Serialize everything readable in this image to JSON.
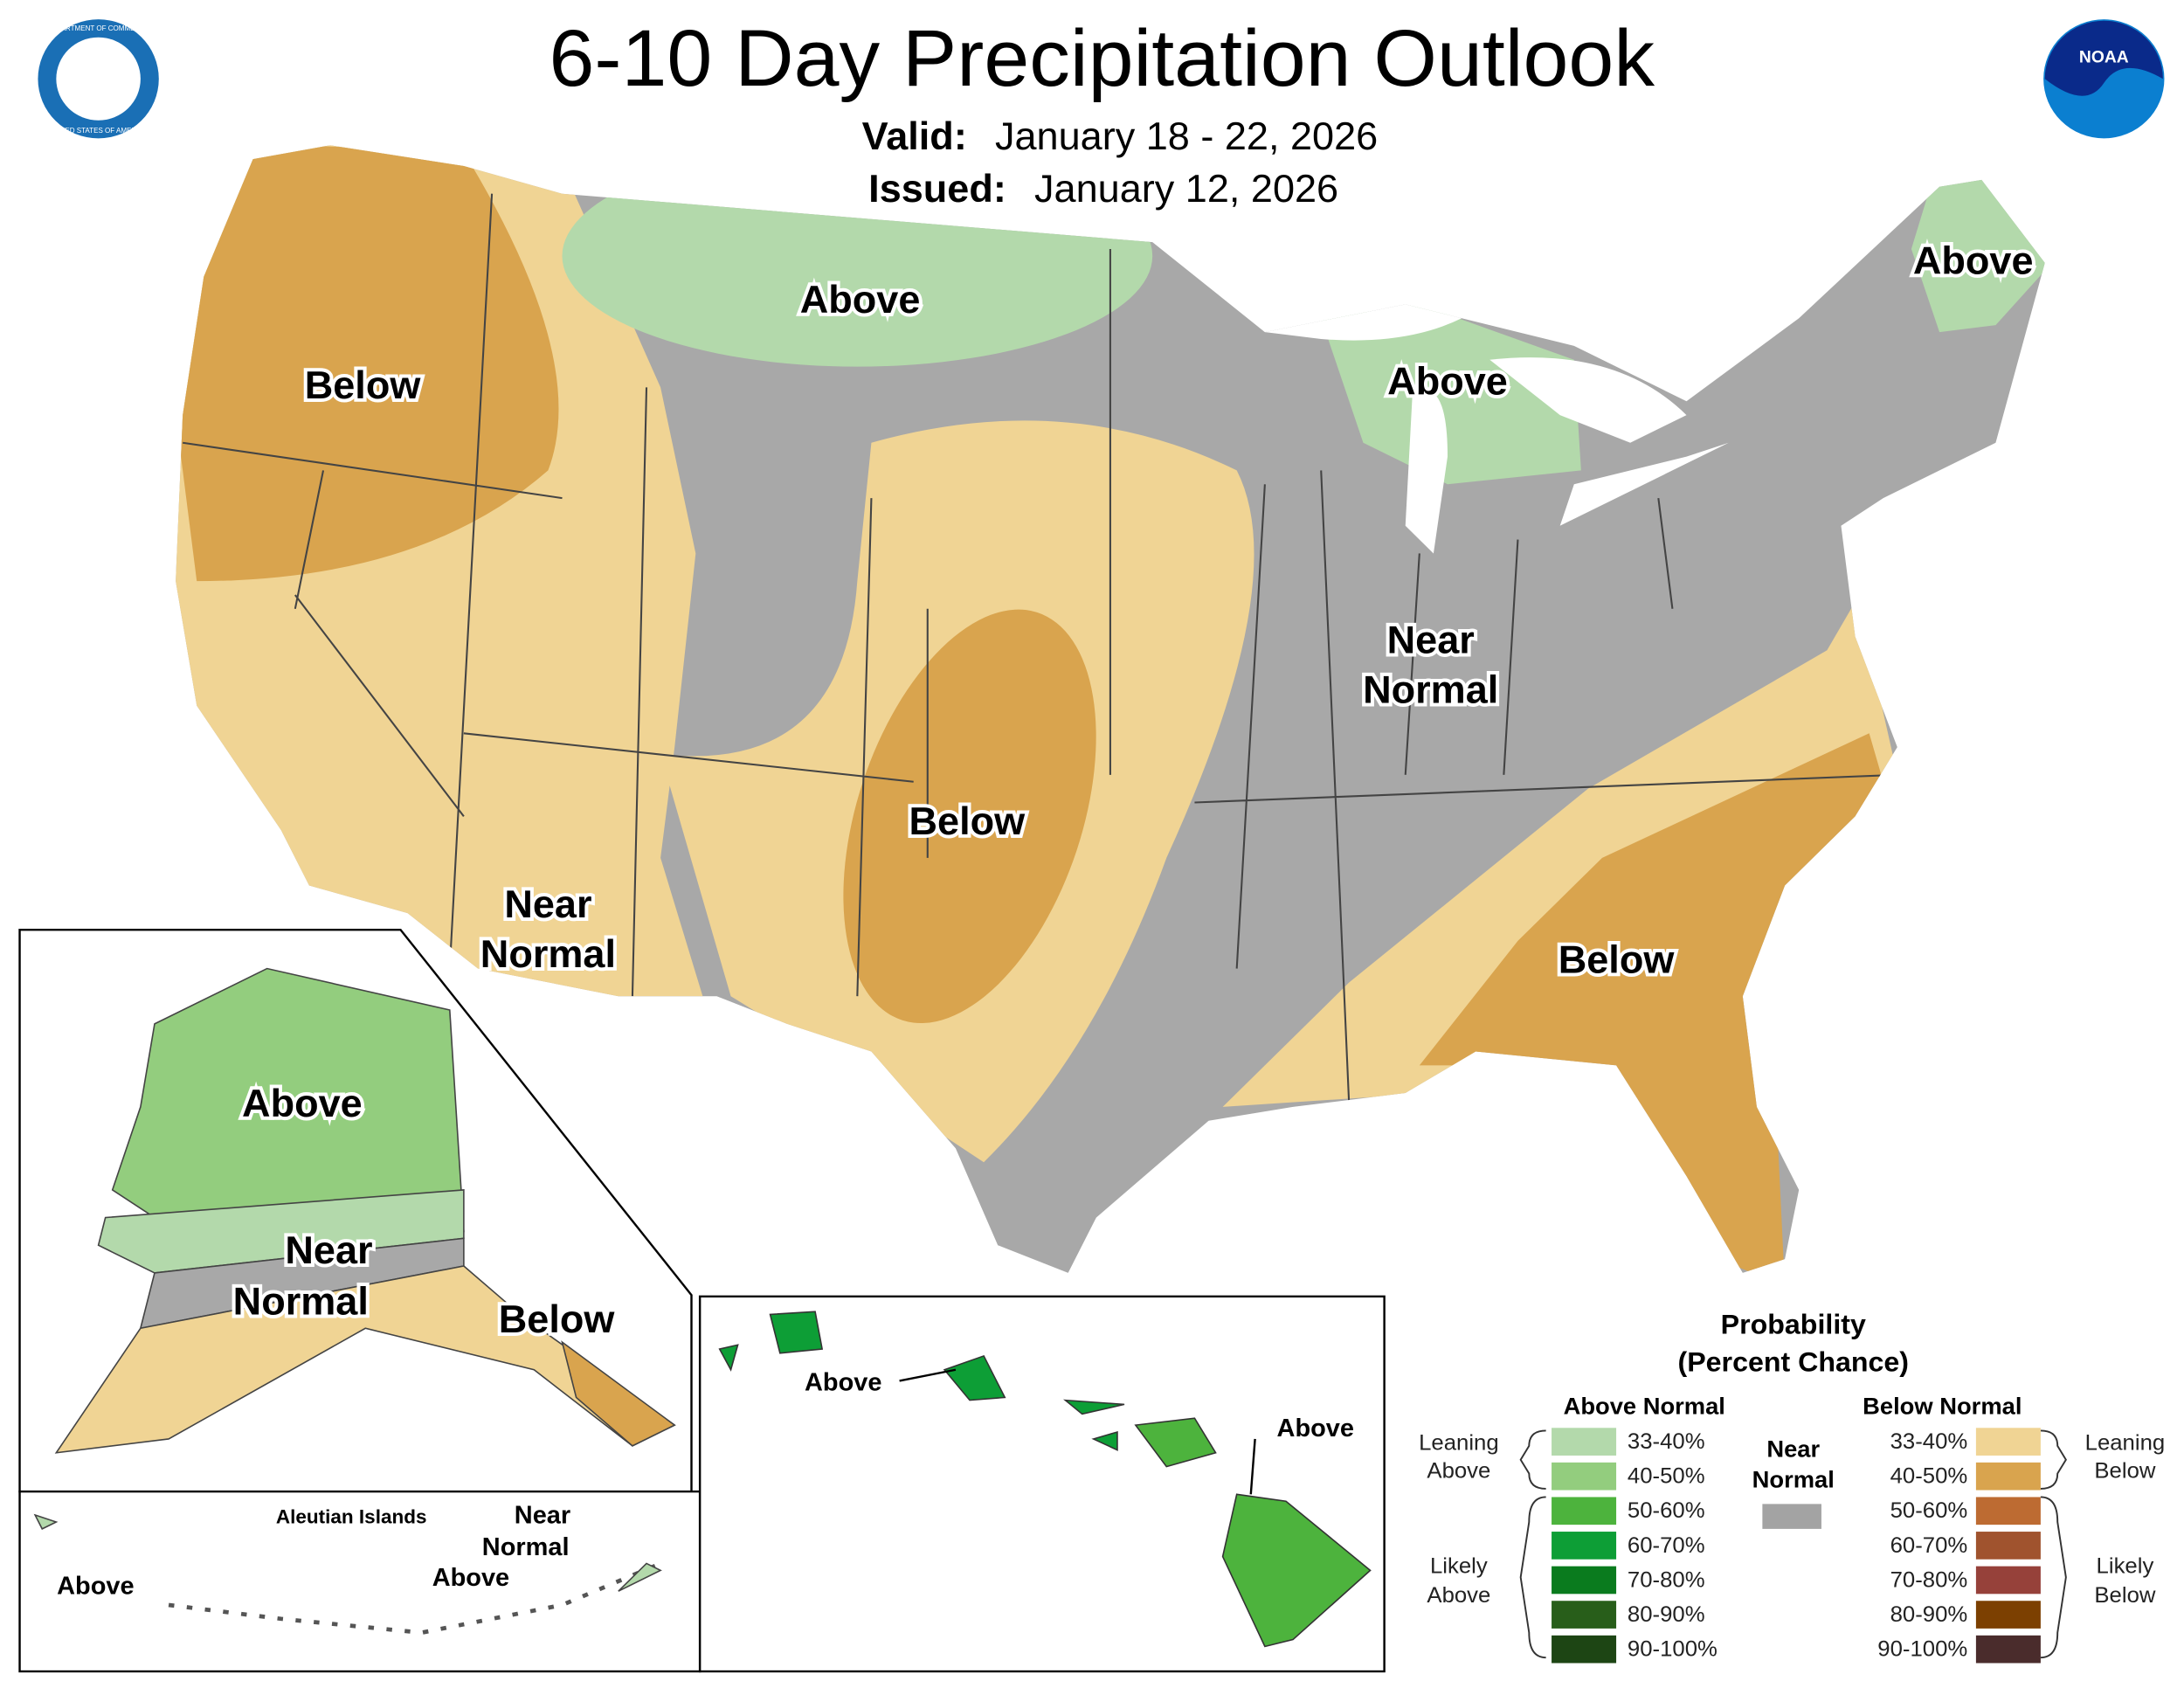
{
  "header": {
    "title": "6-10 Day Precipitation Outlook",
    "valid_label": "Valid:",
    "valid_dates": "January 18 - 22, 2026",
    "issued_label": "Issued:",
    "issued_date": "January 12, 2026"
  },
  "logos": {
    "seal_top": "DEPARTMENT OF COMMERCE",
    "seal_bottom": "UNITED STATES OF AMERICA",
    "noaa": "NOAA"
  },
  "conus": {
    "northwest": "Below",
    "north_plains": "Above",
    "michigan": "Above",
    "maine": "Above",
    "southern_plains": "Below",
    "southwest": [
      "Near",
      "Normal"
    ],
    "midwest": [
      "Near",
      "Normal"
    ],
    "southeast": "Below"
  },
  "alaska": {
    "north": "Above",
    "middle": [
      "Near",
      "Normal"
    ],
    "southeast": "Below"
  },
  "aleutians": {
    "title": "Aleutian Islands",
    "west": "Above",
    "east_near": [
      "Near",
      "Normal"
    ],
    "east_above": "Above"
  },
  "hawaii": {
    "west": "Above",
    "east": "Above"
  },
  "legend": {
    "title": [
      "Probability",
      "(Percent Chance)"
    ],
    "above": {
      "heading": "Above Normal",
      "ranges": [
        {
          "label": "33-40%",
          "color": "#b3d9ab"
        },
        {
          "label": "40-50%",
          "color": "#93cd7e"
        },
        {
          "label": "50-60%",
          "color": "#4db33d"
        },
        {
          "label": "60-70%",
          "color": "#0d9e36"
        },
        {
          "label": "70-80%",
          "color": "#0a7b1e"
        },
        {
          "label": "80-90%",
          "color": "#285e1a"
        },
        {
          "label": "90-100%",
          "color": "#1d4514"
        }
      ]
    },
    "below": {
      "heading": "Below Normal",
      "ranges": [
        {
          "label": "33-40%",
          "color": "#f0d494"
        },
        {
          "label": "40-50%",
          "color": "#d9a44e"
        },
        {
          "label": "50-60%",
          "color": "#bd6b32"
        },
        {
          "label": "60-70%",
          "color": "#a0532e"
        },
        {
          "label": "70-80%",
          "color": "#96413a"
        },
        {
          "label": "80-90%",
          "color": "#7c4001"
        },
        {
          "label": "90-100%",
          "color": "#4a2c2c"
        }
      ]
    },
    "near": {
      "heading": [
        "Near",
        "Normal"
      ],
      "color": "#a3a3a3"
    },
    "brackets": {
      "leaning_above": [
        "Leaning",
        "Above"
      ],
      "likely_above": [
        "Likely",
        "Above"
      ],
      "leaning_below": [
        "Leaning",
        "Below"
      ],
      "likely_below": [
        "Likely",
        "Below"
      ]
    }
  }
}
